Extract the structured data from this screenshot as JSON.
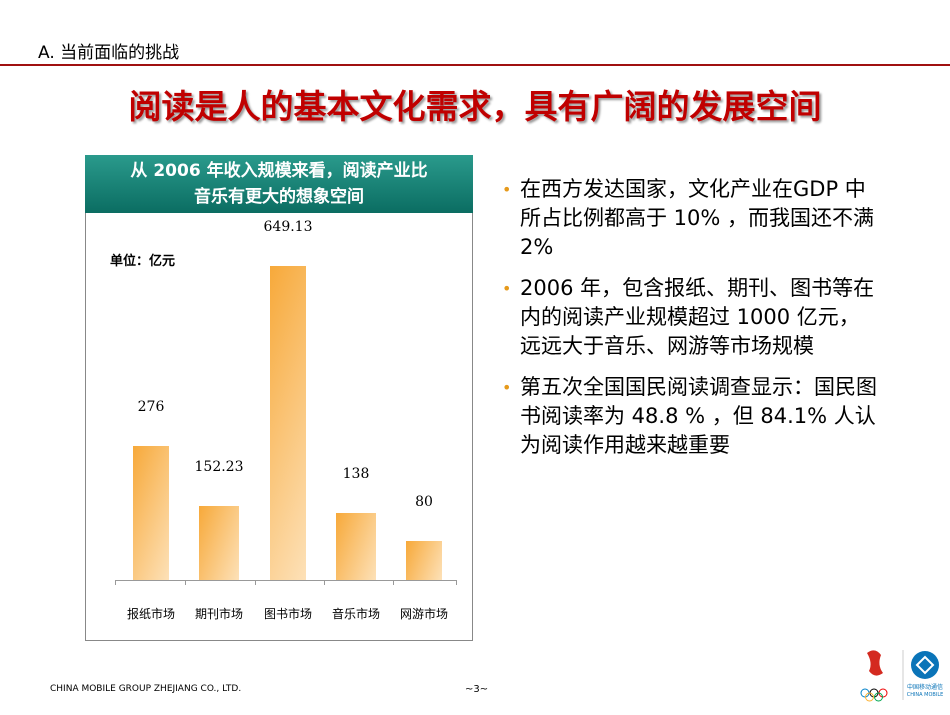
{
  "section": "A.  当前面临的挑战",
  "title": "阅读是人的基本文化需求，具有广阔的发展空间",
  "panel": {
    "header_line1": "从 2006 年收入规模来看，阅读产业比",
    "header_line2": "音乐有更大的想象空间",
    "unit": "单位：亿元"
  },
  "chart_data": {
    "type": "bar",
    "categories": [
      "报纸市场",
      "期刊市场",
      "图书市场",
      "音乐市场",
      "网游市场"
    ],
    "values": [
      276,
      152.23,
      649.13,
      138,
      80
    ],
    "value_labels": [
      "276",
      "152.23",
      "649.13",
      "138",
      "80"
    ],
    "ylabel": "单位：亿元",
    "ylim": [
      0,
      650
    ],
    "grid": false,
    "bar_color": "#f7a93a"
  },
  "bullets": [
    "在西方发达国家，文化产业在GDP 中所占比例都高于 10% ，而我国还不满 2%",
    "2006 年，包含报纸、期刊、图书等在内的阅读产业规模超过 1000 亿元，远远大于音乐、网游等市场规模",
    "第五次全国国民阅读调查显示：国民图书阅读率为 48.8 % ，但   84.1% 人认为阅读作用越来越重要"
  ],
  "footer": {
    "company": "CHINA MOBILE GROUP ZHEJIANG  CO., LTD.",
    "page": "~3~",
    "logo_text": "Beijing 2008 中国移动通信 CHINA MOBILE"
  },
  "colors": {
    "title": "#c00000",
    "header": "#0b6d62",
    "bullet": "#e69a1c"
  }
}
